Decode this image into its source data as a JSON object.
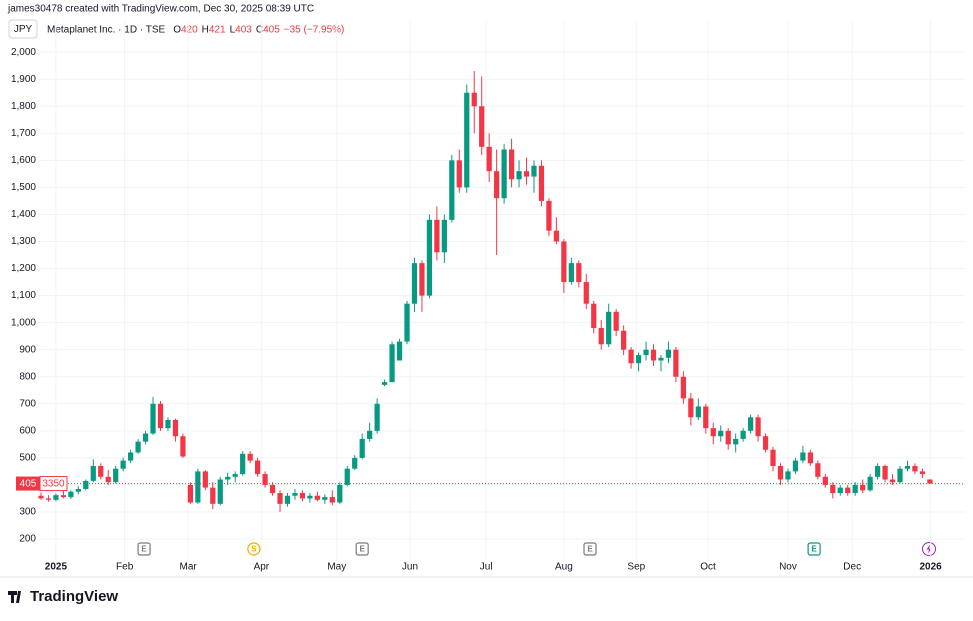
{
  "header": {
    "attribution": "james30478 created with TradingView.com, Dec 30, 2025 08:39 UTC",
    "currency": "JPY"
  },
  "footer": {
    "brand": "TradingView"
  },
  "chart_data": {
    "type": "candlestick",
    "ohlc_keys": [
      "O",
      "H",
      "L",
      "C"
    ],
    "change": "−35 (−7.95%)",
    "badge_extra": "3350",
    "grid": true,
    "ylim": [
      115,
      2045
    ],
    "yticks": [
      200,
      300,
      400,
      500,
      600,
      700,
      800,
      900,
      {
        "value": 1000,
        "label": "1,000"
      },
      {
        "value": 1100,
        "label": "1,100"
      },
      {
        "value": 1200,
        "label": "1,200"
      },
      {
        "value": 1300,
        "label": "1,300"
      },
      {
        "value": 1400,
        "label": "1,400"
      },
      {
        "value": 1500,
        "label": "1,500"
      },
      {
        "value": 1600,
        "label": "1,600"
      },
      {
        "value": 1700,
        "label": "1,700"
      },
      {
        "value": 1800,
        "label": "1,800"
      },
      {
        "value": 1900,
        "label": "1,900"
      },
      {
        "value": 2000,
        "label": "2,000"
      }
    ],
    "xlim": [
      -0.4,
      123.7
    ],
    "xticks": [
      {
        "value": 2.0,
        "label": "2025"
      },
      {
        "value": 11.2,
        "label": "Feb"
      },
      {
        "value": 19.7,
        "label": "Mar"
      },
      {
        "value": 29.5,
        "label": "Apr"
      },
      {
        "value": 39.6,
        "label": "May"
      },
      {
        "value": 49.4,
        "label": "Jun"
      },
      {
        "value": 59.6,
        "label": "Jul"
      },
      {
        "value": 70.0,
        "label": "Aug"
      },
      {
        "value": 79.7,
        "label": "Sep"
      },
      {
        "value": 89.3,
        "label": "Oct"
      },
      {
        "value": 100.0,
        "label": "Nov"
      },
      {
        "value": 108.6,
        "label": "Dec"
      },
      {
        "value": 119.1,
        "label": "2026"
      }
    ],
    "events": [
      {
        "x": 13.8,
        "label": "E",
        "color": "#787b86"
      },
      {
        "x": 28.5,
        "label": "S",
        "color": "#f7a600"
      },
      {
        "x": 43.0,
        "label": "E",
        "color": "#787b86"
      },
      {
        "x": 73.5,
        "label": "E",
        "color": "#787b86"
      },
      {
        "x": 103.5,
        "label": "E",
        "color": "#089981"
      }
    ],
    "series": [
      {
        "name": "Metaplanet Inc. · 1D · TSE",
        "up_color": "#089981",
        "down_color": "#f23645",
        "open": [
          360,
          350,
          345,
          362,
          355,
          375,
          385,
          415,
          470,
          430,
          410,
          460,
          490,
          520,
          560,
          590,
          700,
          610,
          640,
          580,
          400,
          335,
          450,
          390,
          330,
          420,
          430,
          440,
          515,
          490,
          440,
          400,
          370,
          330,
          360,
          370,
          350,
          360,
          345,
          355,
          335,
          400,
          460,
          500,
          570,
          600,
          770,
          780,
          860,
          930,
          1070,
          1220,
          1100,
          1380,
          1260,
          1380,
          1600,
          1500,
          1850,
          1800,
          1650,
          1560,
          1460,
          1640,
          1530,
          1560,
          1540,
          1580,
          1450,
          1340,
          1300,
          1150,
          1220,
          1150,
          1070,
          980,
          920,
          1040,
          970,
          900,
          850,
          880,
          900,
          860,
          870,
          900,
          800,
          720,
          650,
          690,
          610,
          580,
          600,
          550,
          570,
          600,
          650,
          580,
          530,
          470,
          420,
          450,
          490,
          520,
          480,
          430,
          400,
          370,
          390,
          370,
          400,
          380,
          430,
          470,
          420,
          410,
          460,
          470,
          450,
          420
        ],
        "high": [
          372,
          362,
          368,
          378,
          380,
          395,
          420,
          495,
          480,
          455,
          470,
          500,
          530,
          570,
          600,
          725,
          710,
          650,
          645,
          590,
          410,
          460,
          455,
          410,
          430,
          445,
          450,
          525,
          525,
          500,
          450,
          410,
          380,
          370,
          385,
          380,
          370,
          375,
          365,
          380,
          410,
          470,
          510,
          590,
          630,
          720,
          790,
          930,
          940,
          1080,
          1240,
          1230,
          1400,
          1430,
          1400,
          1620,
          1640,
          1880,
          1930,
          1910,
          1700,
          1640,
          1660,
          1680,
          1600,
          1610,
          1600,
          1600,
          1460,
          1390,
          1310,
          1240,
          1230,
          1180,
          1080,
          1010,
          1070,
          1050,
          990,
          910,
          890,
          930,
          920,
          880,
          930,
          910,
          820,
          740,
          720,
          700,
          630,
          620,
          610,
          590,
          610,
          660,
          660,
          590,
          540,
          480,
          460,
          500,
          545,
          530,
          490,
          440,
          410,
          400,
          400,
          410,
          420,
          440,
          480,
          475,
          440,
          470,
          490,
          480,
          460,
          421
        ],
        "low": [
          345,
          338,
          340,
          350,
          348,
          365,
          380,
          410,
          420,
          400,
          405,
          450,
          480,
          515,
          550,
          585,
          600,
          600,
          560,
          500,
          330,
          330,
          380,
          310,
          325,
          400,
          410,
          435,
          480,
          430,
          390,
          360,
          300,
          320,
          345,
          340,
          335,
          340,
          330,
          325,
          330,
          395,
          455,
          495,
          560,
          590,
          765,
          780,
          860,
          920,
          1040,
          1040,
          1090,
          1230,
          1220,
          1370,
          1480,
          1480,
          1700,
          1620,
          1520,
          1250,
          1440,
          1500,
          1500,
          1510,
          1480,
          1430,
          1320,
          1290,
          1110,
          1140,
          1130,
          1050,
          960,
          900,
          910,
          950,
          880,
          830,
          820,
          860,
          840,
          820,
          850,
          780,
          700,
          620,
          640,
          590,
          550,
          560,
          530,
          520,
          560,
          590,
          560,
          520,
          450,
          400,
          410,
          440,
          480,
          470,
          420,
          390,
          350,
          360,
          360,
          360,
          370,
          375,
          420,
          410,
          400,
          405,
          450,
          440,
          425,
          403
        ],
        "close": [
          350,
          345,
          362,
          355,
          375,
          385,
          415,
          470,
          430,
          410,
          460,
          490,
          520,
          560,
          590,
          700,
          610,
          640,
          580,
          505,
          335,
          450,
          390,
          330,
          420,
          430,
          440,
          515,
          490,
          440,
          400,
          370,
          330,
          360,
          370,
          350,
          360,
          345,
          355,
          335,
          400,
          460,
          500,
          570,
          600,
          700,
          780,
          920,
          930,
          1070,
          1220,
          1100,
          1380,
          1260,
          1380,
          1600,
          1500,
          1850,
          1800,
          1650,
          1560,
          1460,
          1640,
          1530,
          1560,
          1540,
          1580,
          1450,
          1340,
          1300,
          1150,
          1220,
          1150,
          1070,
          980,
          920,
          1040,
          970,
          900,
          850,
          880,
          900,
          860,
          870,
          900,
          800,
          720,
          650,
          690,
          610,
          580,
          600,
          550,
          570,
          600,
          650,
          580,
          530,
          470,
          420,
          450,
          490,
          520,
          480,
          430,
          400,
          370,
          390,
          370,
          400,
          380,
          430,
          470,
          420,
          410,
          460,
          470,
          450,
          440,
          405
        ]
      }
    ]
  }
}
